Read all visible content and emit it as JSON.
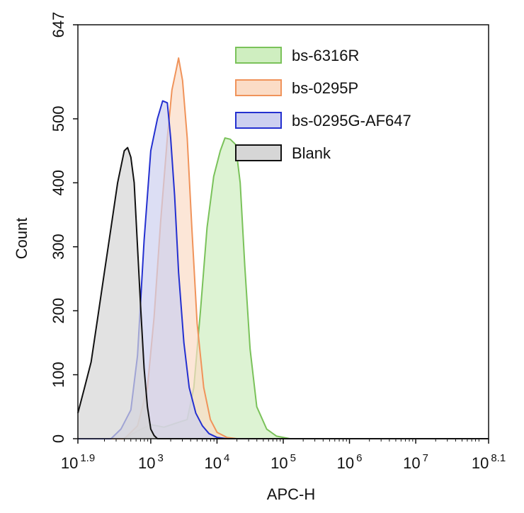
{
  "chart_data": {
    "type": "area",
    "title": "",
    "xlabel": "APC-H",
    "ylabel": "Count",
    "x_scale": "log10",
    "xlim": [
      1.9,
      8.1
    ],
    "ylim": [
      0,
      647
    ],
    "x_ticks": [
      {
        "value": 1.9,
        "base": "10",
        "exp": "1.9"
      },
      {
        "value": 3,
        "base": "10",
        "exp": "3"
      },
      {
        "value": 4,
        "base": "10",
        "exp": "4"
      },
      {
        "value": 5,
        "base": "10",
        "exp": "5"
      },
      {
        "value": 6,
        "base": "10",
        "exp": "6"
      },
      {
        "value": 7,
        "base": "10",
        "exp": "7"
      },
      {
        "value": 8.1,
        "base": "10",
        "exp": "8.1"
      }
    ],
    "y_ticks": [
      {
        "value": 0,
        "label": "0"
      },
      {
        "value": 100,
        "label": "100"
      },
      {
        "value": 200,
        "label": "200"
      },
      {
        "value": 300,
        "label": "300"
      },
      {
        "value": 400,
        "label": "400"
      },
      {
        "value": 500,
        "label": "500"
      },
      {
        "value": 647,
        "label": "647"
      }
    ],
    "grid": false,
    "legend_position": "top-right",
    "series": [
      {
        "name": "bs-6316R",
        "color": "#7ac25a",
        "fill": "#cfeec0",
        "x": [
          1.9,
          2.6,
          2.8,
          3.0,
          3.2,
          3.4,
          3.55,
          3.65,
          3.75,
          3.85,
          3.95,
          4.05,
          4.12,
          4.2,
          4.28,
          4.35,
          4.42,
          4.5,
          4.6,
          4.75,
          4.9,
          5.1,
          8.1
        ],
        "values": [
          0,
          0,
          12,
          22,
          18,
          25,
          30,
          80,
          200,
          330,
          410,
          450,
          470,
          468,
          460,
          400,
          270,
          140,
          50,
          15,
          4,
          0,
          0
        ]
      },
      {
        "name": "bs-0295P",
        "color": "#f0935a",
        "fill": "#fbdcc6",
        "x": [
          1.9,
          2.6,
          2.8,
          2.95,
          3.05,
          3.15,
          3.25,
          3.32,
          3.38,
          3.42,
          3.48,
          3.55,
          3.62,
          3.7,
          3.8,
          3.9,
          4.0,
          4.15,
          4.3,
          8.1
        ],
        "values": [
          0,
          0,
          20,
          80,
          190,
          340,
          470,
          545,
          575,
          595,
          560,
          470,
          330,
          180,
          80,
          30,
          10,
          2,
          0,
          0
        ]
      },
      {
        "name": "bs-0295G-AF647",
        "color": "#2430d0",
        "fill": "#cdd0f0",
        "x": [
          1.9,
          2.4,
          2.55,
          2.7,
          2.8,
          2.9,
          3.0,
          3.1,
          3.18,
          3.25,
          3.3,
          3.36,
          3.42,
          3.5,
          3.58,
          3.68,
          3.78,
          3.88,
          4.0,
          4.15,
          8.1
        ],
        "values": [
          0,
          0,
          15,
          45,
          130,
          310,
          450,
          500,
          528,
          525,
          470,
          380,
          260,
          150,
          80,
          40,
          20,
          8,
          2,
          0,
          0
        ]
      },
      {
        "name": "Blank",
        "color": "#111111",
        "fill": "#d6d6d6",
        "x": [
          1.9,
          2.0,
          2.1,
          2.2,
          2.3,
          2.4,
          2.5,
          2.6,
          2.65,
          2.7,
          2.75,
          2.8,
          2.85,
          2.9,
          2.95,
          3.0,
          3.05,
          3.1,
          8.1
        ],
        "values": [
          40,
          80,
          120,
          190,
          260,
          330,
          400,
          450,
          455,
          440,
          400,
          300,
          200,
          110,
          50,
          15,
          5,
          0,
          0
        ]
      }
    ]
  }
}
